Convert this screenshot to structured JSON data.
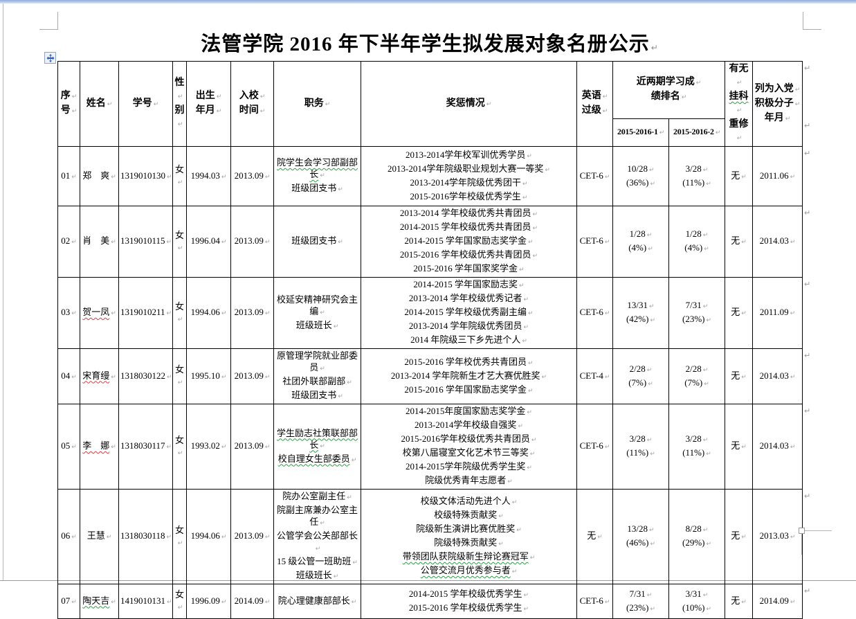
{
  "page": {
    "title": "法管学院 2016 年下半年学生拟发展对象名册公示",
    "paragraph_mark": "↵"
  },
  "colors": {
    "titlebar_blue": "#8fabd8",
    "spellcheck_red": "#e03a3a",
    "grammar_green": "#2e9e44",
    "table_border": "#000000"
  },
  "icons": {
    "table_move_handle": "four-way-arrow-icon",
    "table_resize_handle": "resize-grip-icon",
    "paragraph_mark": "return-arrow-icon"
  },
  "table": {
    "headers": {
      "serial": [
        "序",
        "号"
      ],
      "name": [
        "姓名"
      ],
      "student_id": [
        "学号"
      ],
      "gender": [
        "性",
        "别"
      ],
      "birth": [
        "出生",
        "年月"
      ],
      "enrolled": [
        "入校",
        "时间"
      ],
      "position": [
        "职务"
      ],
      "awards": [
        "奖惩情况"
      ],
      "english": [
        "英语",
        "过级"
      ],
      "rank_group": [
        "近两期学习成",
        "绩排名"
      ],
      "rank_term1": [
        "2015-2016-1"
      ],
      "rank_term2": [
        "2015-2016-2"
      ],
      "retake": [
        {
          "t": "有无"
        },
        {
          "t": "挂科",
          "u": "green"
        },
        {
          "t": "重修"
        }
      ],
      "activist": [
        "列为入党",
        "积极分子",
        "年月"
      ]
    },
    "rows": [
      {
        "no": "01",
        "name": [
          {
            "t": "郑　爽"
          }
        ],
        "student_id": "1319010130",
        "gender": "女",
        "birth": "1994.03",
        "enrolled": "2013.09",
        "positions": [
          {
            "t": "院学生会学习部副部长",
            "u": "green"
          },
          {
            "t": "班级团支书"
          }
        ],
        "awards": [
          "2013-2014学年校军训优秀学员",
          "2013-2014学年院级职业规划大赛一等奖",
          "2013-2014学年院级优秀团干",
          "2015-2016学年校级优秀学生"
        ],
        "english": "CET-6",
        "rank_term1": [
          "10/28",
          "(36%)"
        ],
        "rank_term2": [
          "3/28",
          "(11%)"
        ],
        "failed_retake": "无",
        "activist_date": "2011.06"
      },
      {
        "no": "02",
        "name": [
          {
            "t": "肖　美"
          }
        ],
        "student_id": "1319010115",
        "gender": "女",
        "birth": "1996.04",
        "enrolled": "2013.09",
        "positions": [
          "班级团支书"
        ],
        "awards": [
          "2013-2014 学年校级优秀共青团员",
          "2014-2015 学年校级优秀共青团员",
          "2014-2015 学年国家励志奖学金",
          "2015-2016 学年校级优秀共青团员",
          "2015-2016 学年国家奖学金"
        ],
        "english": "CET-6",
        "rank_term1": [
          "1/28",
          "(4%)"
        ],
        "rank_term2": [
          "1/28",
          "(4%)"
        ],
        "failed_retake": "无",
        "activist_date": "2014.03"
      },
      {
        "no": "03",
        "name": [
          {
            "t": "贺一凤",
            "u": "red"
          }
        ],
        "student_id": "1319010211",
        "gender": "女",
        "birth": "1994.06",
        "enrolled": "2013.09",
        "positions": [
          "校延安精神研究会主编",
          "班级班长"
        ],
        "awards": [
          "2014-2015 学年国家励志奖",
          "2013-2014 学年校级优秀记者",
          "2014-2015 学年校级优秀副主编",
          "2013-2014 学年院级优秀团员",
          "2014 年院级三下乡先进个人"
        ],
        "english": "CET-6",
        "rank_term1": [
          "13/31",
          "(42%)"
        ],
        "rank_term2": [
          "7/31",
          "(23%)"
        ],
        "failed_retake": "无",
        "activist_date": "2011.09"
      },
      {
        "no": "04",
        "name": [
          {
            "t": "宋育缦",
            "u": "red"
          }
        ],
        "student_id": "1318030122",
        "gender": "女",
        "birth": "1995.10",
        "enrolled": "2013.09",
        "positions": [
          "原管理学院就业部委员",
          "社团外联部副部",
          "班级团支书"
        ],
        "awards": [
          "2015-2016 学年校优秀共青团员",
          "2013-2014 学年院新生才艺大赛优胜奖",
          "2015-2016 学年国家励志奖学金"
        ],
        "english": "CET-4",
        "rank_term1": [
          "2/28",
          "(7%)"
        ],
        "rank_term2": [
          "2/28",
          "(7%)"
        ],
        "failed_retake": "无",
        "activist_date": "2014.03"
      },
      {
        "no": "05",
        "name": [
          {
            "t": "李　娜",
            "u": "red"
          }
        ],
        "student_id": "1318030117",
        "gender": "女",
        "birth": "1993.02",
        "enrolled": "2013.09",
        "positions": [
          {
            "t": "学生励志社策联部部长",
            "u": "green"
          },
          {
            "t": "校自理女生部委员",
            "u": "green"
          }
        ],
        "awards": [
          "2014-2015年度国家励志奖学金",
          "2013-2014学年校级自强奖",
          "2015-2016学年校级优秀共青团员",
          "校第八届寝室文化艺术节三等奖",
          "2014-2015学年院级优秀学生奖",
          "院级优秀青年志愿者"
        ],
        "english": "CET-6",
        "rank_term1": [
          "3/28",
          "(11%)"
        ],
        "rank_term2": [
          "3/28",
          "(11%)"
        ],
        "failed_retake": "无",
        "activist_date": "2014.03"
      },
      {
        "no": "06",
        "name": [
          {
            "t": "王慧"
          }
        ],
        "student_id": "1318030118",
        "gender": "女",
        "birth": "1994.06",
        "enrolled": "2013.09",
        "positions": [
          "院办公室副主任",
          "院副主席兼办公室主任",
          "公管学会公关部部长",
          "15 级公管一班助班",
          "班级班长"
        ],
        "awards": [
          "校级文体活动先进个人",
          "校级特殊贡献奖",
          "院级新生演讲比赛优胜奖",
          "院级特殊贡献奖",
          {
            "t": "带领团队获院级新生辩论赛冠军",
            "u": "green"
          },
          {
            "t": "公管交流月优秀参与者",
            "u": "green"
          }
        ],
        "english": "无",
        "rank_term1": [
          "13/28",
          "(46%)"
        ],
        "rank_term2": [
          "8/28",
          "(29%)"
        ],
        "failed_retake": "无",
        "activist_date": "2013.03"
      },
      {
        "no": "07",
        "name": [
          {
            "t": "陶天吉",
            "u": "green"
          }
        ],
        "student_id": "1419010131",
        "gender": "女",
        "birth": "1996.09",
        "enrolled": "2014.09",
        "positions": [
          "院心理健康部部长"
        ],
        "awards": [
          "2014-2015 学年校级优秀学生",
          "2015-2016 学年校级优秀学生"
        ],
        "english": "CET-6",
        "rank_term1": [
          "7/31",
          "(23%)"
        ],
        "rank_term2": [
          "3/31",
          "(10%)"
        ],
        "failed_retake": "无",
        "activist_date": "2014.09"
      }
    ]
  }
}
